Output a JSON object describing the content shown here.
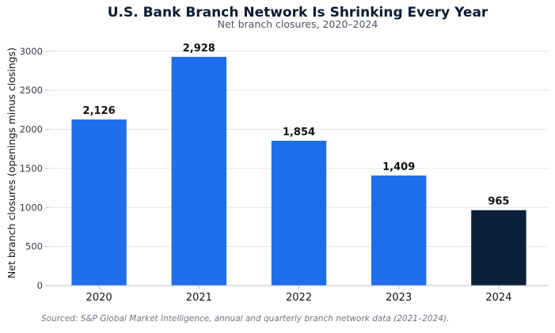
{
  "chart_data": {
    "type": "bar",
    "title": "U.S. Bank Branch Network Is Shrinking Every Year",
    "subtitle": "Net branch closures, 2020–2024",
    "xlabel": "",
    "ylabel": "Net branch closures (openings minus closings)",
    "categories": [
      "2020",
      "2021",
      "2022",
      "2023",
      "2024"
    ],
    "values": [
      2126,
      2928,
      1854,
      1409,
      965
    ],
    "data_labels": [
      "2,126",
      "2,928",
      "1,854",
      "1,409",
      "965"
    ],
    "bar_colors": [
      "#1f6de9",
      "#1f6de9",
      "#1f6de9",
      "#1f6de9",
      "#0b1f3a"
    ],
    "ylim": [
      0,
      3200
    ],
    "yticks": [
      0,
      500,
      1000,
      1500,
      2000,
      2500,
      3000
    ],
    "grid": true,
    "legend": "none"
  },
  "source_note": "Sourced: S&P Global Market Intelligence, annual and quarterly branch network data (2021–2024)."
}
